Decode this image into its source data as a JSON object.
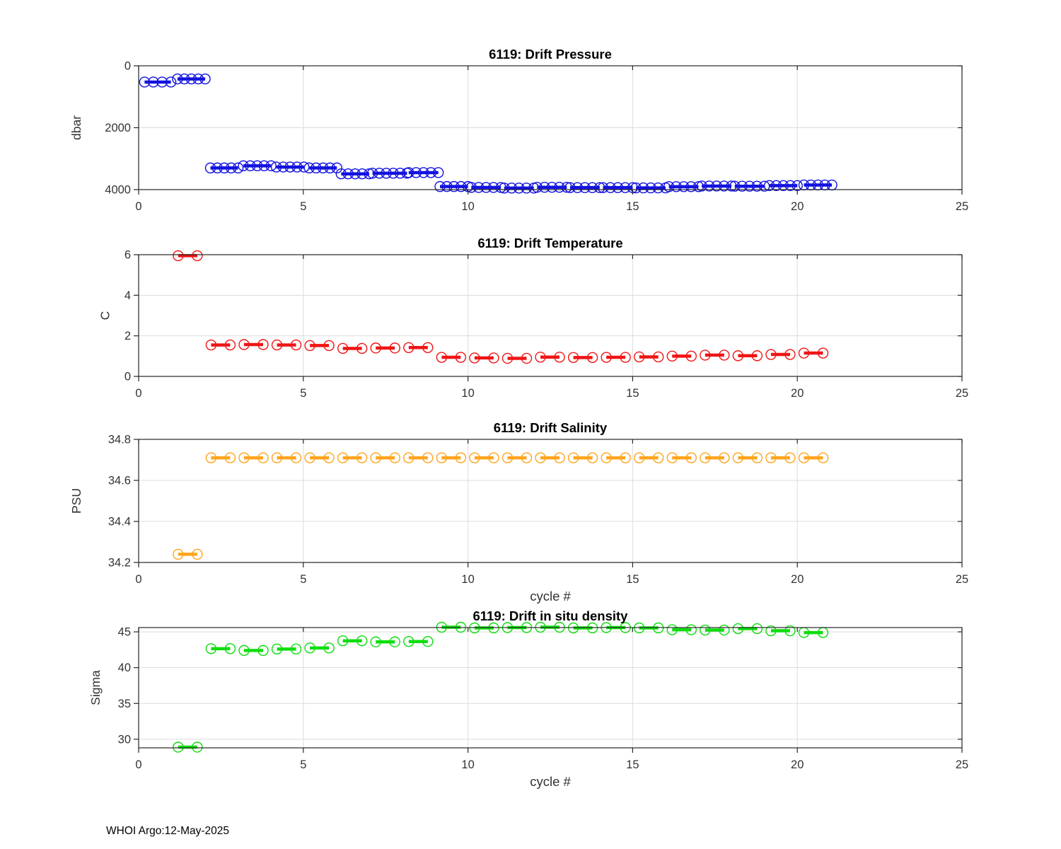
{
  "footer": "WHOI Argo:12-May-2025",
  "colors": {
    "pressure": "#1212e0",
    "temperature": "#f01414",
    "salinity": "#ffa41c",
    "density": "#0ddd0d",
    "axis": "#262626",
    "grid": "#dcdcdc",
    "tick_label": "#333333",
    "title": "#000000"
  },
  "chart_data": [
    {
      "type": "scatter",
      "title": "6119: Drift Pressure",
      "ylabel": "dbar",
      "xlabel": "",
      "series_color_key": "pressure",
      "xlim": [
        0,
        25
      ],
      "ylim": [
        0,
        4000
      ],
      "y_reversed": true,
      "xticks": [
        0,
        5,
        10,
        15,
        20,
        25
      ],
      "yticks": [
        0,
        2000,
        4000
      ],
      "clusters": [
        {
          "x_start": 0.18,
          "x_end": 0.98,
          "points": 4,
          "y": 525
        },
        {
          "x_start": 1.18,
          "x_end": 2.02,
          "points": 5,
          "y": 425
        },
        {
          "x_start": 2.18,
          "x_end": 3.02,
          "points": 5,
          "y": 3300
        },
        {
          "x_start": 3.18,
          "x_end": 4.02,
          "points": 5,
          "y": 3230
        },
        {
          "x_start": 4.18,
          "x_end": 5.02,
          "points": 5,
          "y": 3270
        },
        {
          "x_start": 5.18,
          "x_end": 6.02,
          "points": 5,
          "y": 3300
        },
        {
          "x_start": 6.15,
          "x_end": 7.0,
          "points": 5,
          "y": 3490
        },
        {
          "x_start": 7.1,
          "x_end": 8.15,
          "points": 6,
          "y": 3470
        },
        {
          "x_start": 8.2,
          "x_end": 9.1,
          "points": 5,
          "y": 3450
        },
        {
          "x_start": 9.15,
          "x_end": 10.0,
          "points": 5,
          "y": 3900
        },
        {
          "x_start": 10.1,
          "x_end": 11.0,
          "points": 5,
          "y": 3930
        },
        {
          "x_start": 11.1,
          "x_end": 12.0,
          "points": 5,
          "y": 3950
        },
        {
          "x_start": 12.1,
          "x_end": 13.0,
          "points": 5,
          "y": 3925
        },
        {
          "x_start": 13.1,
          "x_end": 14.0,
          "points": 5,
          "y": 3935
        },
        {
          "x_start": 14.1,
          "x_end": 15.0,
          "points": 5,
          "y": 3935
        },
        {
          "x_start": 15.1,
          "x_end": 16.0,
          "points": 5,
          "y": 3945
        },
        {
          "x_start": 16.1,
          "x_end": 17.0,
          "points": 5,
          "y": 3905
        },
        {
          "x_start": 17.1,
          "x_end": 18.0,
          "points": 5,
          "y": 3885
        },
        {
          "x_start": 18.1,
          "x_end": 19.0,
          "points": 5,
          "y": 3890
        },
        {
          "x_start": 19.15,
          "x_end": 20.0,
          "points": 5,
          "y": 3870
        },
        {
          "x_start": 20.2,
          "x_end": 21.05,
          "points": 5,
          "y": 3850
        }
      ]
    },
    {
      "type": "scatter",
      "title": "6119: Drift Temperature",
      "ylabel": "C",
      "xlabel": "",
      "series_color_key": "temperature",
      "xlim": [
        0,
        25
      ],
      "ylim": [
        0,
        6
      ],
      "y_reversed": false,
      "xticks": [
        0,
        5,
        10,
        15,
        20,
        25
      ],
      "yticks": [
        0,
        2,
        4,
        6
      ],
      "cycles": [
        1,
        2,
        3,
        4,
        5,
        6,
        7,
        8,
        9,
        10,
        11,
        12,
        13,
        14,
        15,
        16,
        17,
        18,
        19,
        20
      ],
      "values": [
        5.95,
        1.55,
        1.57,
        1.55,
        1.52,
        1.38,
        1.4,
        1.42,
        0.94,
        0.91,
        0.89,
        0.95,
        0.93,
        0.94,
        0.96,
        1.0,
        1.05,
        1.02,
        1.08,
        1.15
      ],
      "cluster_span": [
        0.2,
        0.78
      ],
      "points_per_cluster": 2
    },
    {
      "type": "scatter",
      "title": "6119: Drift Salinity",
      "ylabel": "PSU",
      "xlabel": "cycle #",
      "series_color_key": "salinity",
      "xlim": [
        0,
        25
      ],
      "ylim": [
        34.2,
        34.8
      ],
      "y_reversed": false,
      "xticks": [
        0,
        5,
        10,
        15,
        20,
        25
      ],
      "yticks": [
        34.2,
        34.4,
        34.6,
        34.8
      ],
      "cycles": [
        1,
        2,
        3,
        4,
        5,
        6,
        7,
        8,
        9,
        10,
        11,
        12,
        13,
        14,
        15,
        16,
        17,
        18,
        19,
        20
      ],
      "values": [
        34.24,
        34.71,
        34.71,
        34.71,
        34.71,
        34.71,
        34.71,
        34.71,
        34.71,
        34.71,
        34.71,
        34.71,
        34.71,
        34.71,
        34.71,
        34.71,
        34.71,
        34.71,
        34.71,
        34.71
      ],
      "cluster_span": [
        0.2,
        0.78
      ],
      "points_per_cluster": 2
    },
    {
      "type": "scatter",
      "title": "6119: Drift in situ density",
      "ylabel": "Sigma",
      "xlabel": "cycle #",
      "series_color_key": "density",
      "xlim": [
        0,
        25
      ],
      "ylim": [
        28.8,
        45.6
      ],
      "y_reversed": false,
      "xticks": [
        0,
        5,
        10,
        15,
        20,
        25
      ],
      "yticks": [
        30,
        35,
        40,
        45
      ],
      "cycles": [
        1,
        2,
        3,
        4,
        5,
        6,
        7,
        8,
        9,
        10,
        11,
        12,
        13,
        14,
        15,
        16,
        17,
        18,
        19,
        20
      ],
      "values": [
        28.9,
        42.65,
        42.4,
        42.6,
        42.75,
        43.75,
        43.6,
        43.65,
        45.65,
        45.55,
        45.6,
        45.65,
        45.55,
        45.6,
        45.55,
        45.3,
        45.25,
        45.45,
        45.15,
        44.9
      ],
      "cluster_span": [
        0.2,
        0.78
      ],
      "points_per_cluster": 2
    }
  ]
}
